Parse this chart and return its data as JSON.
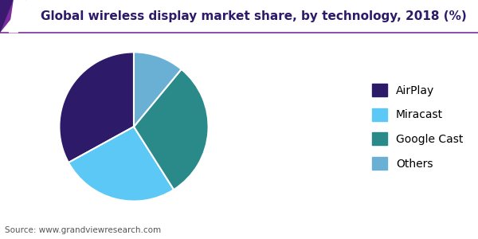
{
  "title": "Global wireless display market share, by technology, 2018 (%)",
  "title_color": "#2d1b69",
  "title_fontsize": 11,
  "labels": [
    "AirPlay",
    "Miracast",
    "Google Cast",
    "Others"
  ],
  "values": [
    33,
    26,
    30,
    11
  ],
  "colors": [
    "#2d1b69",
    "#5bc8f5",
    "#2a8a8a",
    "#6ab0d4"
  ],
  "startangle": 90,
  "source_text": "Source: www.grandviewresearch.com",
  "background_color": "#ffffff",
  "header_line_color": "#7b2d9e",
  "legend_fontsize": 10,
  "corner_color1": "#7b2d9e",
  "corner_color2": "#3a1a6e"
}
